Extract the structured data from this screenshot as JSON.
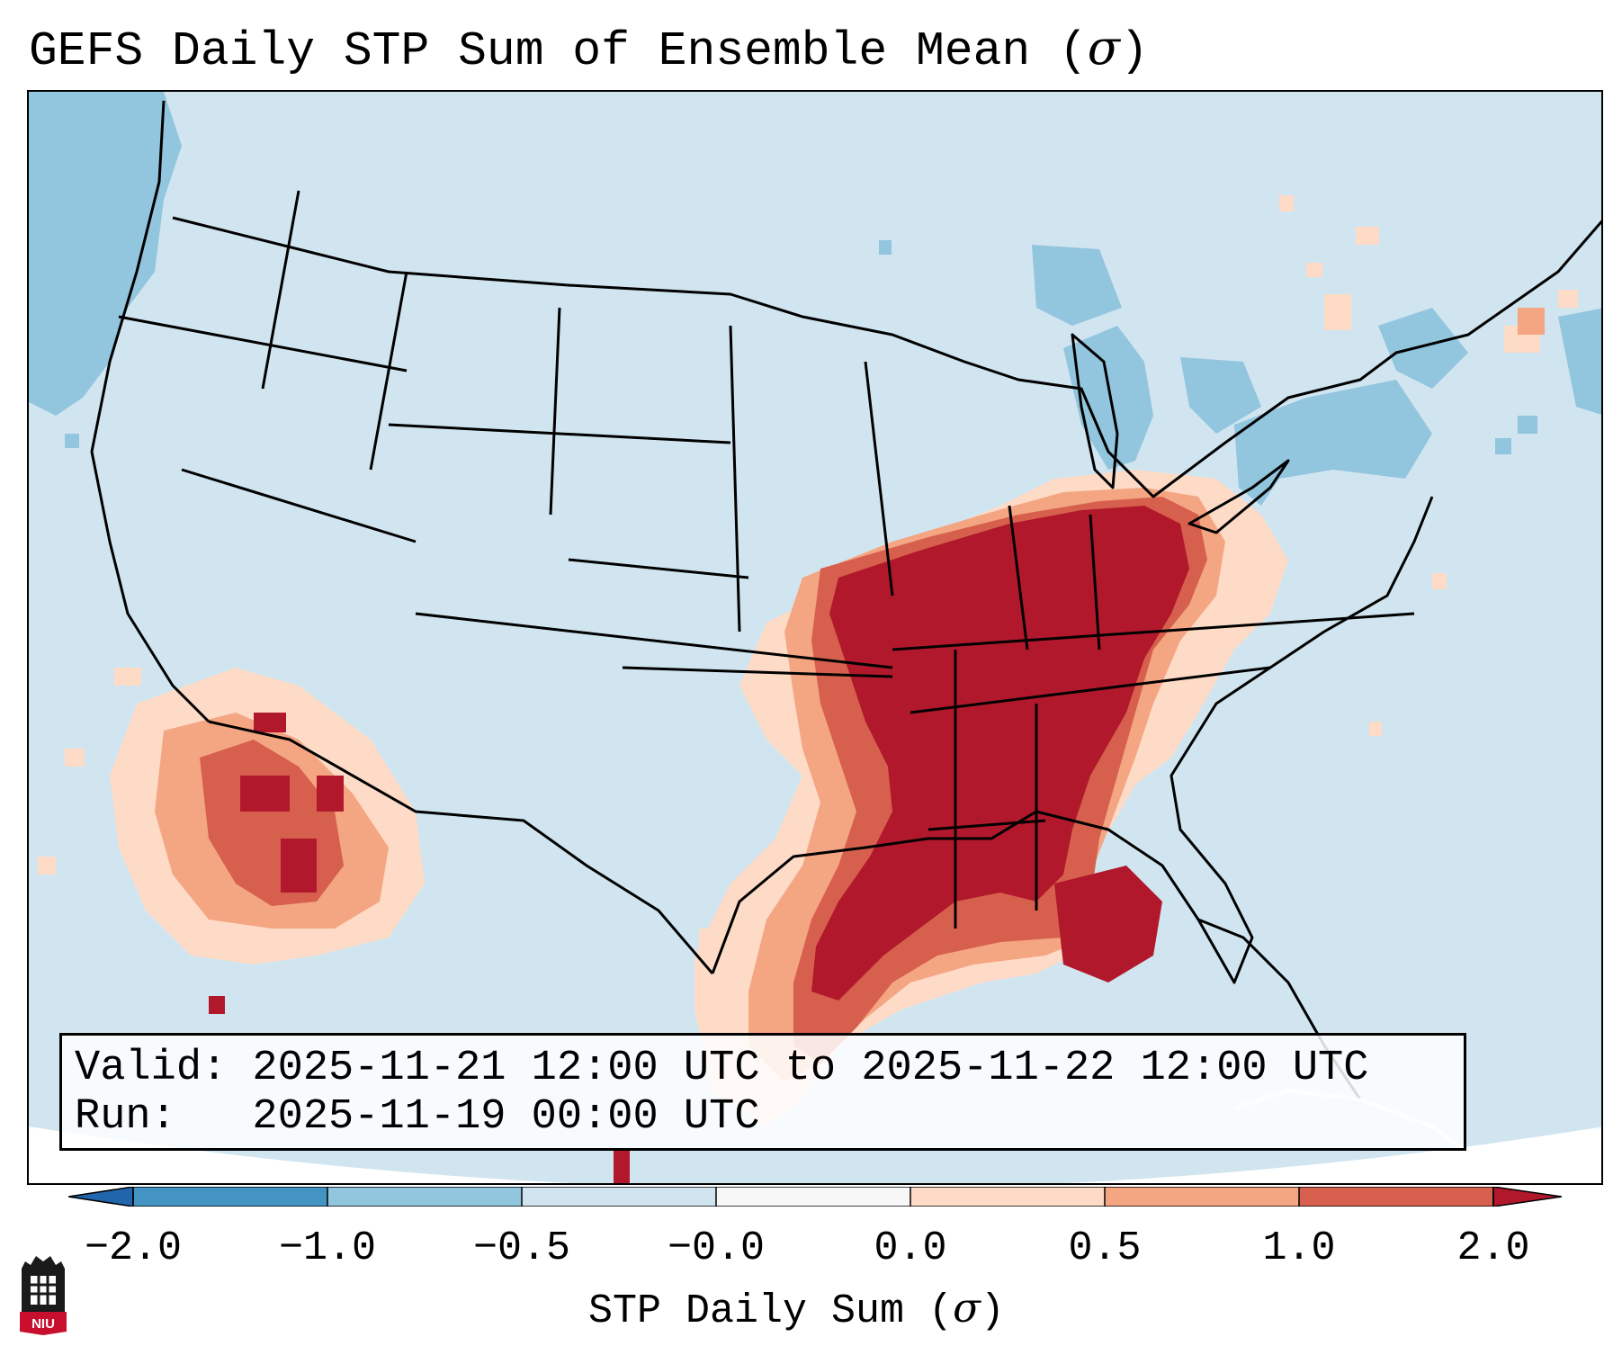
{
  "title": {
    "text": "GEFS Daily STP Sum of Ensemble Mean (",
    "sigma": "σ",
    "close": ")"
  },
  "map": {
    "name": "Contiguous United States STP anomaly map",
    "projection": "Lambert Conformal",
    "background_color": "#d1e5f0",
    "border_color": "#000000"
  },
  "info_box": {
    "valid_line": "Valid: 2025-11-21 12:00 UTC to 2025-11-22 12:00 UTC",
    "run_line": "Run:   2025-11-19 00:00 UTC"
  },
  "colorbar": {
    "ticks": [
      "−2.0",
      "−1.0",
      "−0.5",
      "−0.0",
      "0.0",
      "0.5",
      "1.0",
      "2.0"
    ],
    "colors": [
      "#2166ac",
      "#4393c3",
      "#92c5de",
      "#d1e5f0",
      "#f7f7f7",
      "#fddbc7",
      "#f4a582",
      "#d6604d",
      "#b2182b"
    ],
    "label_text": "STP Daily Sum (",
    "label_sigma": "σ",
    "label_close": ")"
  },
  "logo": {
    "text": "NIU",
    "color": "#c8102e"
  }
}
